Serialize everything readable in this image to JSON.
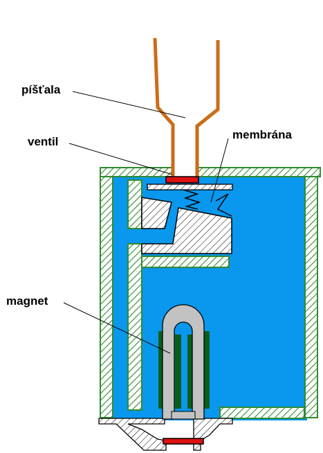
{
  "labels": {
    "pistala": "píšťala",
    "ventil": "ventil",
    "membrana": "membrána",
    "magnet": "magnet"
  },
  "colors": {
    "water": "#0a97ee",
    "green_hatch": "#2e8b2e",
    "pipe": "#cc6d18",
    "valve": "#dd1111",
    "magnet_gray": "#c2c2c2",
    "coil": "#0b5e1a",
    "outline": "#000000"
  }
}
